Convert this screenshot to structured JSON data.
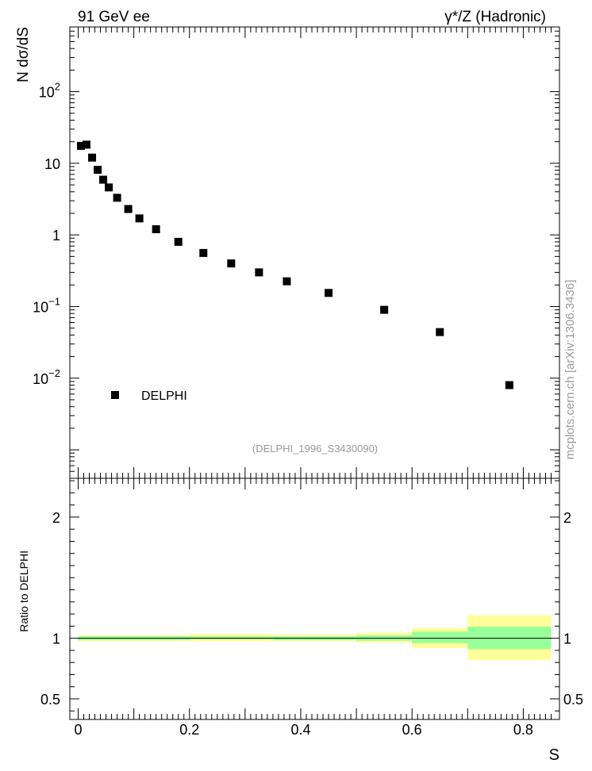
{
  "header": {
    "left_label": "91 GeV ee",
    "right_label": "γ*/Z (Hadronic)"
  },
  "watermark": "mcplots.cern.ch [arXiv:1306.3436]",
  "analysis_tag": "(DELPHI_1996_S3430090)",
  "chart_data": [
    {
      "type": "scatter",
      "title": "",
      "ylabel": "N dσ/dS",
      "xlabel": "S",
      "yscale": "log",
      "xlim": [
        -0.015,
        0.865
      ],
      "ylim": [
        0.0004,
        800
      ],
      "ytick_labels": [
        {
          "value": 0.01,
          "base": "10",
          "exp": "−2"
        },
        {
          "value": 0.1,
          "base": "10",
          "exp": "−1"
        },
        {
          "value": 1,
          "base": "1",
          "exp": ""
        },
        {
          "value": 10,
          "base": "10",
          "exp": ""
        },
        {
          "value": 100,
          "base": "10",
          "exp": "2"
        }
      ],
      "legend": {
        "label": "DELPHI",
        "position": "bottom-left"
      },
      "series": [
        {
          "name": "DELPHI",
          "x": [
            0.005,
            0.015,
            0.025,
            0.035,
            0.045,
            0.055,
            0.07,
            0.09,
            0.11,
            0.14,
            0.18,
            0.225,
            0.275,
            0.325,
            0.375,
            0.45,
            0.55,
            0.65,
            0.775
          ],
          "y": [
            17.5,
            18.2,
            12.0,
            8.1,
            5.9,
            4.6,
            3.3,
            2.3,
            1.7,
            1.2,
            0.8,
            0.56,
            0.4,
            0.3,
            0.225,
            0.155,
            0.09,
            0.044,
            0.008
          ]
        }
      ]
    },
    {
      "type": "band",
      "ylabel": "Ratio to DELPHI",
      "xlabel": "S",
      "xlim": [
        -0.015,
        0.865
      ],
      "ylim": [
        0.33,
        2.32
      ],
      "ytick_labels": [
        "0.5",
        "1",
        "2"
      ],
      "xtick_labels": [
        "0",
        "0.2",
        "0.4",
        "0.6",
        "0.8"
      ],
      "reference_line": 1.0,
      "bins": [
        {
          "x0": 0.0,
          "x1": 0.16,
          "green": [
            0.985,
            1.015
          ],
          "yellow": [
            0.975,
            1.025
          ]
        },
        {
          "x0": 0.16,
          "x1": 0.2,
          "green": [
            0.985,
            1.015
          ],
          "yellow": [
            0.975,
            1.025
          ]
        },
        {
          "x0": 0.2,
          "x1": 0.35,
          "green": [
            0.99,
            1.015
          ],
          "yellow": [
            0.975,
            1.035
          ]
        },
        {
          "x0": 0.35,
          "x1": 0.4,
          "green": [
            0.985,
            1.015
          ],
          "yellow": [
            0.975,
            1.03
          ]
        },
        {
          "x0": 0.4,
          "x1": 0.5,
          "green": [
            0.985,
            1.015
          ],
          "yellow": [
            0.975,
            1.03
          ]
        },
        {
          "x0": 0.5,
          "x1": 0.6,
          "green": [
            0.98,
            1.025
          ],
          "yellow": [
            0.965,
            1.045
          ]
        },
        {
          "x0": 0.6,
          "x1": 0.7,
          "green": [
            0.96,
            1.055
          ],
          "yellow": [
            0.92,
            1.085
          ]
        },
        {
          "x0": 0.7,
          "x1": 0.85,
          "green": [
            0.91,
            1.095
          ],
          "yellow": [
            0.82,
            1.19
          ]
        }
      ]
    }
  ]
}
